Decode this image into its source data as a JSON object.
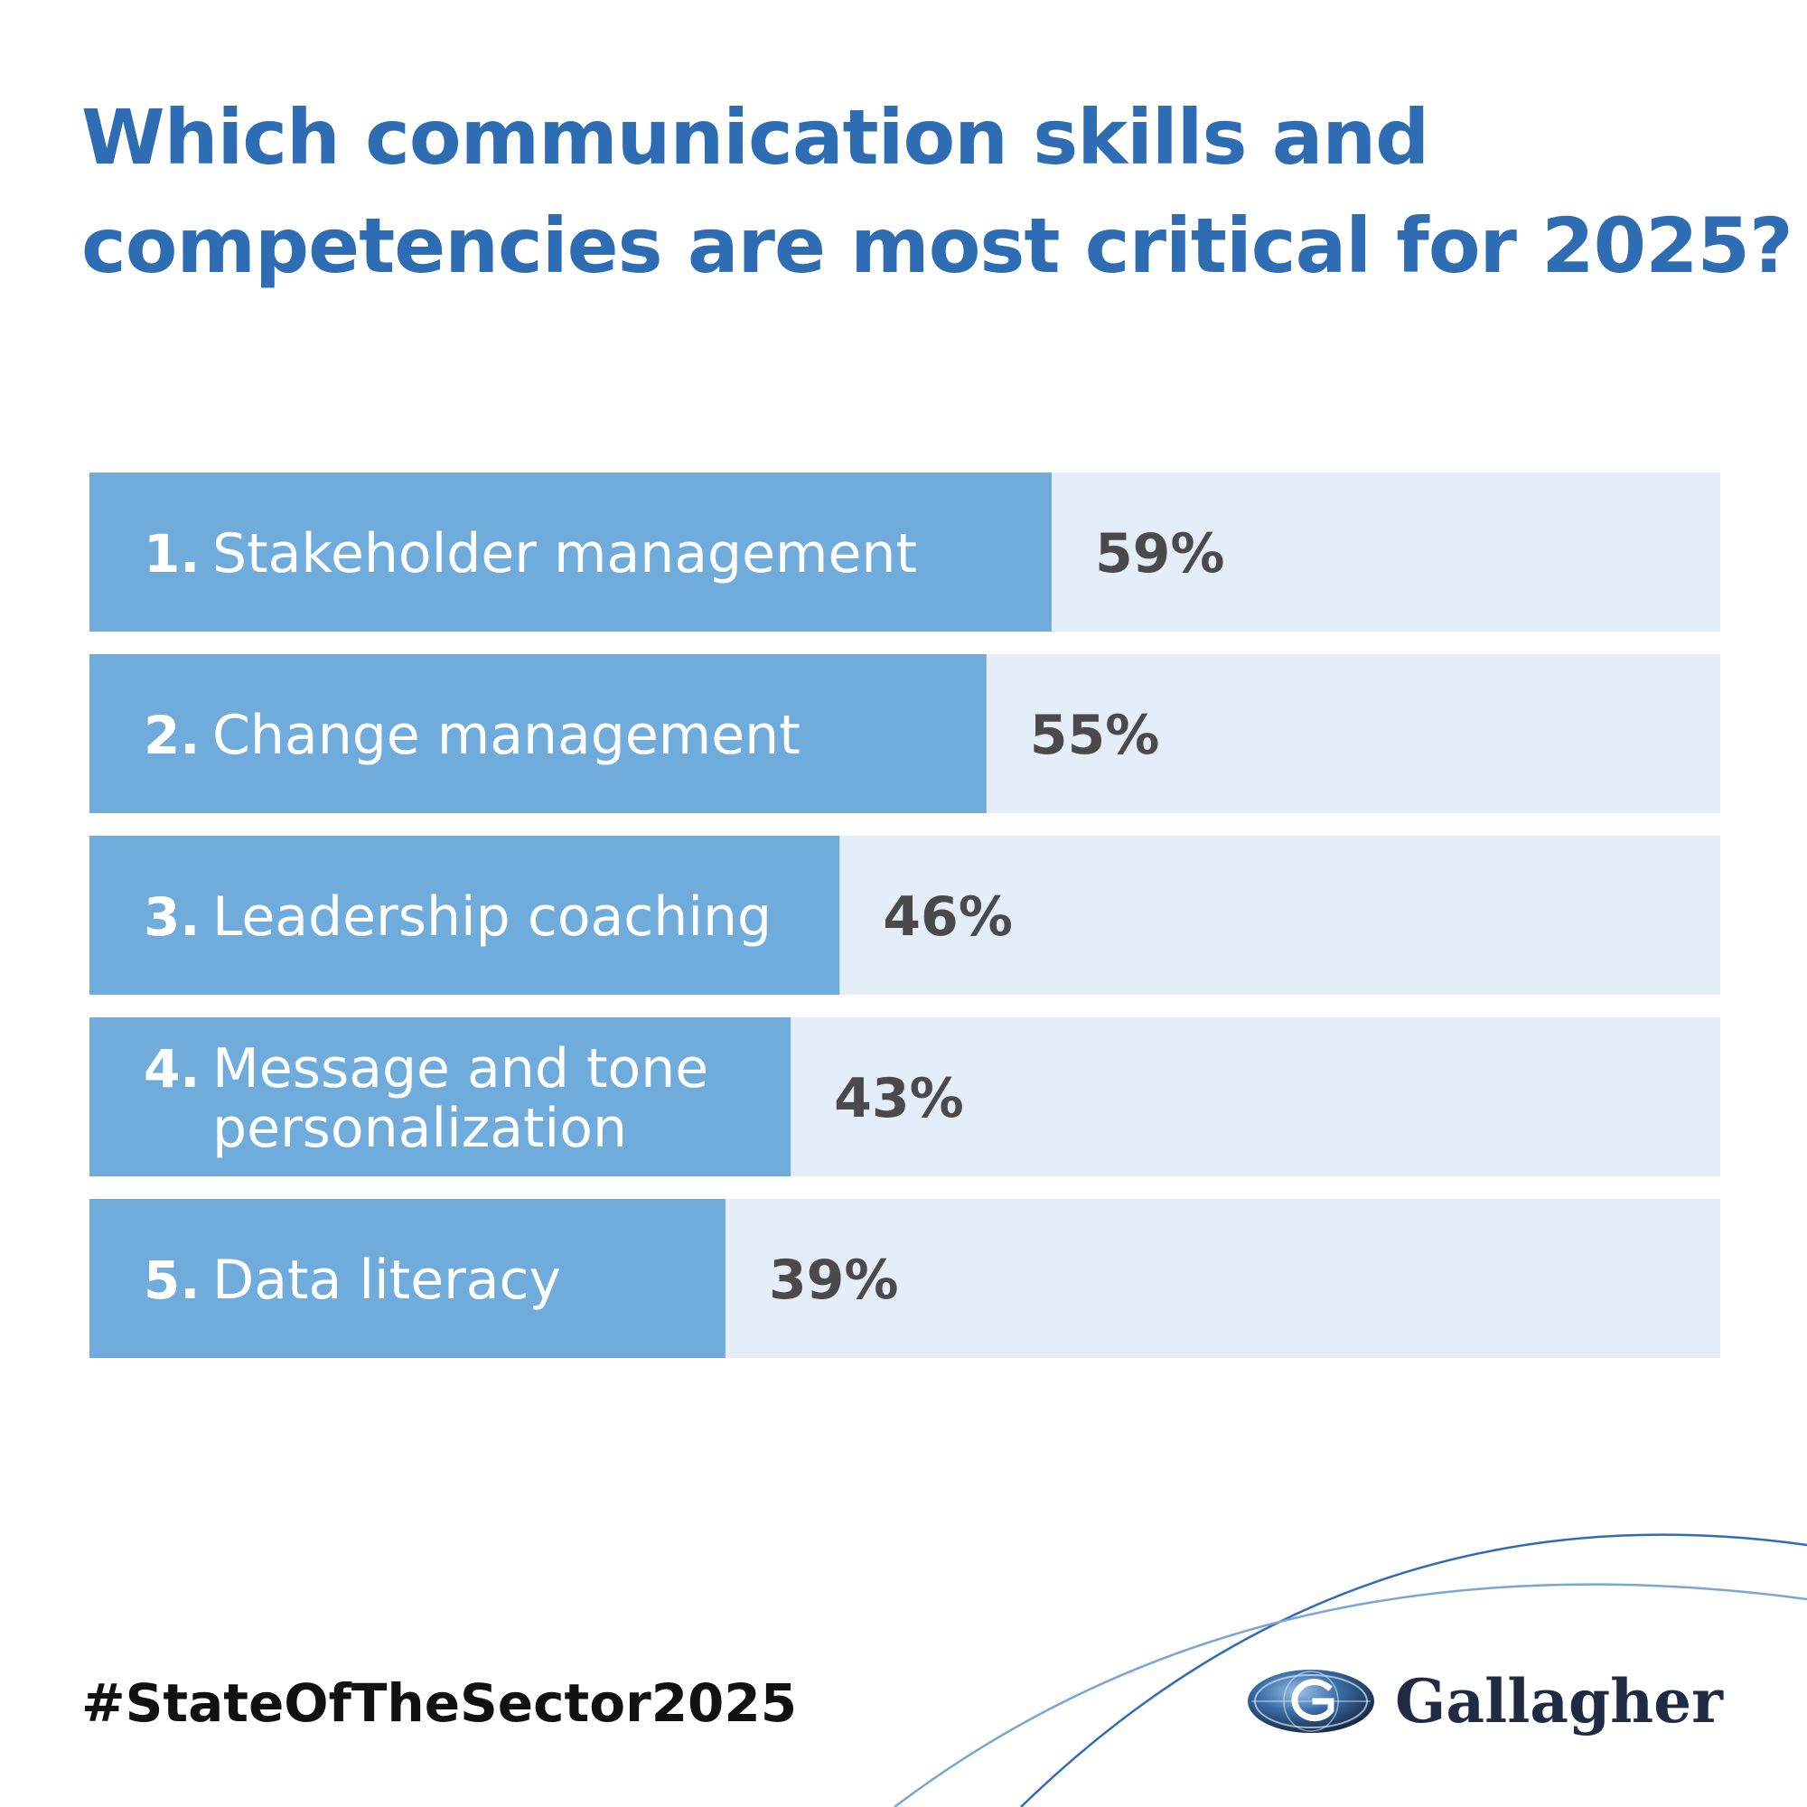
{
  "title": {
    "line1": "Which communication skills and",
    "line2": "competencies are most critical for 2025?"
  },
  "chart_data": {
    "type": "bar",
    "orientation": "horizontal",
    "categories": [
      {
        "rank": "1.",
        "label": [
          "Stakeholder management"
        ]
      },
      {
        "rank": "2.",
        "label": [
          "Change management"
        ]
      },
      {
        "rank": "3.",
        "label": [
          "Leadership coaching"
        ]
      },
      {
        "rank": "4.",
        "label": [
          "Message and tone",
          "personalization"
        ]
      },
      {
        "rank": "5.",
        "label": [
          "Data literacy"
        ]
      }
    ],
    "values": [
      59,
      55,
      46,
      43,
      39
    ],
    "value_labels": [
      "59%",
      "55%",
      "46%",
      "43%",
      "39%"
    ],
    "xlim": [
      0,
      100
    ],
    "grid": false,
    "legend": "none",
    "colors": {
      "bar": "#6facdc",
      "track": "#e5edf8",
      "label": "#ffffff",
      "value": "#4a4a4a"
    }
  },
  "footer": {
    "hashtag": "#StateOfTheSector2025",
    "brand": "Gallagher",
    "brand_icon": "gallagher-globe-logo"
  },
  "colors": {
    "title": "#2e6db3",
    "swoosh": "#2e6db3"
  }
}
